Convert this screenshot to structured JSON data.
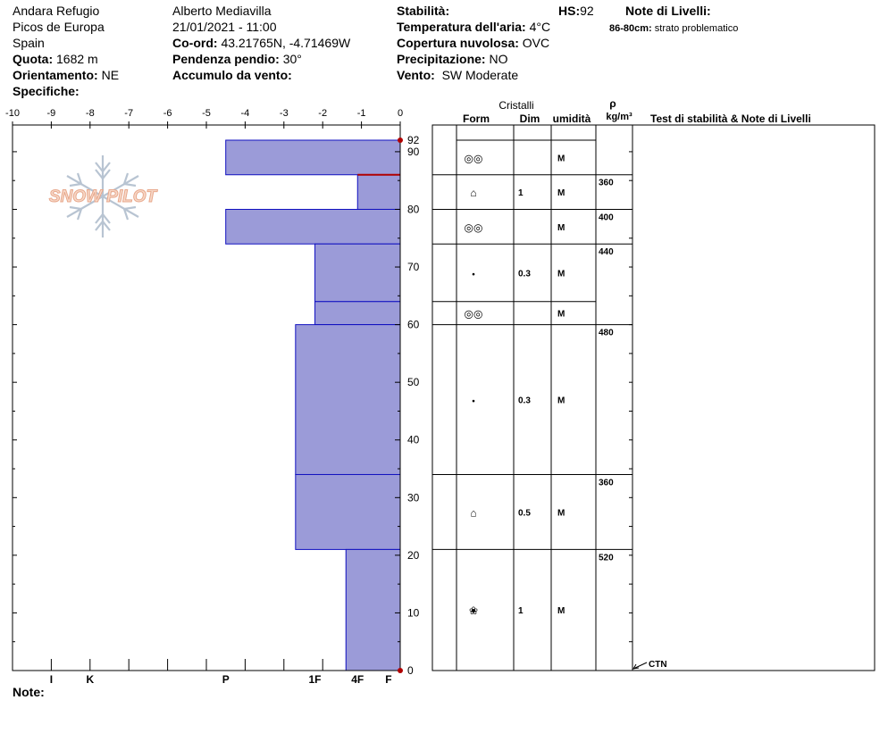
{
  "header": {
    "location": "Andara Refugio",
    "range": "Picos de Europa",
    "country": "Spain",
    "elevation_label": "Quota:",
    "elevation_value": "1682 m",
    "aspect_label": "Orientamento:",
    "aspect_value": "NE",
    "specifics_label": "Specifiche:",
    "observer": "Alberto Mediavilla",
    "datetime": "21/01/2021 - 11:00",
    "coord_label": "Co-ord:",
    "coord_value": "43.21765N, -4.71469W",
    "slope_label": "Pendenza pendio:",
    "slope_value": "30°",
    "wind_loading_label": "Accumulo da vento:",
    "wind_loading_value": "",
    "stability_label": "Stabilità:",
    "stability_value": "",
    "hs_label": "HS:",
    "hs_value": "92",
    "air_temp_label": "Temperatura dell'aria:",
    "air_temp_value": "4°C",
    "sky_label": "Copertura nuvolosa:",
    "sky_value": "OVC",
    "precip_label": "Precipitazione:",
    "precip_value": "NO",
    "wind_label": "Vento:",
    "wind_value": "SW Moderate",
    "layer_notes_label": "Note di Livelli:",
    "layer_note_range": "86-80cm:",
    "layer_note_text": "strato problematico"
  },
  "footer": {
    "notes_label": "Note:"
  },
  "logo": {
    "text": "SNOW PILOT",
    "icon": "snowflake-icon"
  },
  "table_headers": {
    "crystals": "Cristalli",
    "form": "Form",
    "size": "Dim",
    "moisture": "umidità",
    "rho": "ρ",
    "density_unit": "kg/m³",
    "tests": "Test di stabilità & Note di Livelli"
  },
  "ctn_label": "CTN",
  "chart_data": {
    "type": "bar",
    "title": "",
    "hardness_ticks": [
      "-10",
      "-9",
      "-8",
      "-7",
      "-6",
      "-5",
      "-4",
      "-3",
      "-2",
      "-1",
      "0"
    ],
    "hardness_axis_labels": [
      {
        "label": "I",
        "pos": -9
      },
      {
        "label": "K",
        "pos": -8
      },
      {
        "label": "P",
        "pos": -4.5
      },
      {
        "label": "1F",
        "pos": -2.2
      },
      {
        "label": "4F",
        "pos": -1.1
      },
      {
        "label": "F",
        "pos": -0.3
      }
    ],
    "depth_ticks": [
      0,
      10,
      20,
      30,
      40,
      50,
      60,
      70,
      80,
      90
    ],
    "depth_top_label": "92",
    "depth_range": [
      0,
      92
    ],
    "hardness_range": [
      -10,
      0
    ],
    "colors": {
      "layer_fill": "#9b9bd8",
      "layer_edge": "#1010c0",
      "problem_line": "#b00000"
    },
    "layers": [
      {
        "top": 92,
        "bottom": 86,
        "hardness": -4.5
      },
      {
        "top": 86,
        "bottom": 80,
        "hardness": -1.1
      },
      {
        "top": 80,
        "bottom": 74,
        "hardness": -4.5
      },
      {
        "top": 74,
        "bottom": 64,
        "hardness": -2.2
      },
      {
        "top": 64,
        "bottom": 60,
        "hardness": -2.2
      },
      {
        "top": 60,
        "bottom": 34,
        "hardness": -2.7
      },
      {
        "top": 34,
        "bottom": 21,
        "hardness": -2.7
      },
      {
        "top": 21,
        "bottom": 0,
        "hardness": -1.4
      }
    ],
    "problem_layer_depth": 86,
    "crystal_rows": [
      {
        "top": 92,
        "bottom": 86,
        "form": "◎◎",
        "size": "",
        "moisture": "M"
      },
      {
        "top": 86,
        "bottom": 80,
        "form": "⌂",
        "size": "1",
        "moisture": "M"
      },
      {
        "top": 80,
        "bottom": 74,
        "form": "◎◎",
        "size": "",
        "moisture": "M"
      },
      {
        "top": 74,
        "bottom": 64,
        "form": "•",
        "size": "0.3",
        "moisture": "M"
      },
      {
        "top": 64,
        "bottom": 60,
        "form": "◎◎",
        "size": "",
        "moisture": "M"
      },
      {
        "top": 60,
        "bottom": 34,
        "form": "•",
        "size": "0.3",
        "moisture": "M"
      },
      {
        "top": 34,
        "bottom": 21,
        "form": "⌂",
        "size": "0.5",
        "moisture": "M"
      },
      {
        "top": 21,
        "bottom": 0,
        "form": "❀",
        "size": "1",
        "moisture": "M"
      }
    ],
    "density_rows": [
      {
        "top": 86,
        "value": "360"
      },
      {
        "top": 80,
        "value": "400"
      },
      {
        "top": 74,
        "value": "440"
      },
      {
        "top": 60,
        "value": "480"
      },
      {
        "top": 34,
        "value": "360"
      },
      {
        "top": 21,
        "value": "520"
      }
    ]
  }
}
